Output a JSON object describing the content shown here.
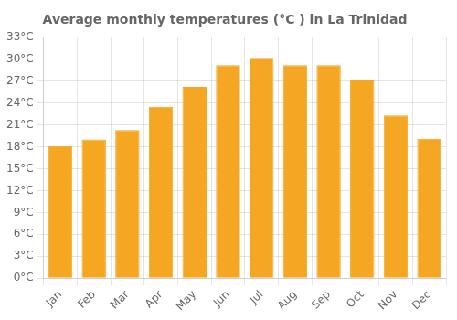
{
  "chart_data": {
    "type": "bar",
    "title": "Average monthly temperatures (°C ) in La Trinidad",
    "categories": [
      "Jan",
      "Feb",
      "Mar",
      "Apr",
      "May",
      "Jun",
      "Jul",
      "Aug",
      "Sep",
      "Oct",
      "Nov",
      "Dec"
    ],
    "values": [
      18.1,
      19.0,
      20.3,
      23.5,
      26.2,
      29.2,
      30.2,
      29.2,
      29.2,
      27.1,
      22.3,
      19.1
    ],
    "color": "#F5A623",
    "ylim": [
      0,
      33
    ],
    "yticks": [
      {
        "value": 0,
        "label": "0°C"
      },
      {
        "value": 3,
        "label": "3°C"
      },
      {
        "value": 6,
        "label": "6°C"
      },
      {
        "value": 9,
        "label": "9°C"
      },
      {
        "value": 12,
        "label": "12°C"
      },
      {
        "value": 15,
        "label": "15°C"
      },
      {
        "value": 18,
        "label": "18°C"
      },
      {
        "value": 21,
        "label": "21°C"
      },
      {
        "value": 24,
        "label": "24°C"
      },
      {
        "value": 27,
        "label": "27°C"
      },
      {
        "value": 30,
        "label": "30°C"
      },
      {
        "value": 33,
        "label": "33°C"
      }
    ],
    "grid": true
  }
}
